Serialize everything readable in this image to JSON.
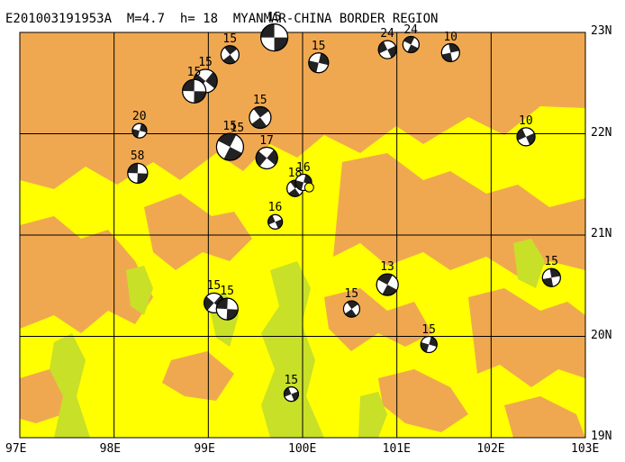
{
  "map": {
    "title": "E201003191953A  M=4.7  h= 18  MYANMAR-CHINA BORDER REGION",
    "lon_labels": [
      "97E",
      "98E",
      "99E",
      "100E",
      "101E",
      "102E",
      "103E"
    ],
    "lat_labels": [
      "23N",
      "22N",
      "21N",
      "20N",
      "19N"
    ],
    "lon_range": [
      97,
      103
    ],
    "lat_range": [
      19,
      23
    ],
    "colors": {
      "lowland": "#ffff00",
      "highland": "#f0a850",
      "valley": "#c8e028",
      "grid": "#000000"
    },
    "epicenter": {
      "lon": 100.07,
      "lat": 21.47
    },
    "events": [
      {
        "label": "15",
        "lon": 99.7,
        "lat": 22.95,
        "size": 15
      },
      {
        "label": "15",
        "lon": 99.23,
        "lat": 22.78,
        "size": 10
      },
      {
        "label": "15",
        "lon": 100.17,
        "lat": 22.7,
        "size": 11
      },
      {
        "label": "24",
        "lon": 100.9,
        "lat": 22.83,
        "size": 10
      },
      {
        "label": "24",
        "lon": 101.15,
        "lat": 22.88,
        "size": 9
      },
      {
        "label": "10",
        "lon": 101.57,
        "lat": 22.8,
        "size": 10
      },
      {
        "label": "15",
        "lon": 98.97,
        "lat": 22.52,
        "size": 13
      },
      {
        "label": "15",
        "lon": 98.85,
        "lat": 22.42,
        "size": 13
      },
      {
        "label": "15",
        "lon": 99.55,
        "lat": 22.16,
        "size": 12
      },
      {
        "label": "20",
        "lon": 98.27,
        "lat": 22.03,
        "size": 8
      },
      {
        "label": "10",
        "lon": 102.37,
        "lat": 21.97,
        "size": 10
      },
      {
        "label": "15",
        "lon": 99.23,
        "lat": 21.87,
        "size": 15
      },
      {
        "label": "15",
        "lon": 99.25,
        "lat": 21.88,
        "size": 0
      },
      {
        "label": "17",
        "lon": 99.62,
        "lat": 21.76,
        "size": 12
      },
      {
        "label": "58",
        "lon": 98.25,
        "lat": 21.61,
        "size": 11
      },
      {
        "label": "18",
        "lon": 99.92,
        "lat": 21.46,
        "size": 9
      },
      {
        "label": "16",
        "lon": 100.01,
        "lat": 21.52,
        "size": 9
      },
      {
        "label": "16",
        "lon": 99.71,
        "lat": 21.13,
        "size": 8
      },
      {
        "label": "13",
        "lon": 100.9,
        "lat": 20.51,
        "size": 12
      },
      {
        "label": "15",
        "lon": 102.64,
        "lat": 20.58,
        "size": 10
      },
      {
        "label": "15",
        "lon": 99.06,
        "lat": 20.33,
        "size": 11
      },
      {
        "label": "15",
        "lon": 99.2,
        "lat": 20.27,
        "size": 12
      },
      {
        "label": "15",
        "lon": 100.52,
        "lat": 20.27,
        "size": 9
      },
      {
        "label": "15",
        "lon": 101.34,
        "lat": 19.92,
        "size": 9
      },
      {
        "label": "15",
        "lon": 99.88,
        "lat": 19.43,
        "size": 8
      }
    ]
  }
}
